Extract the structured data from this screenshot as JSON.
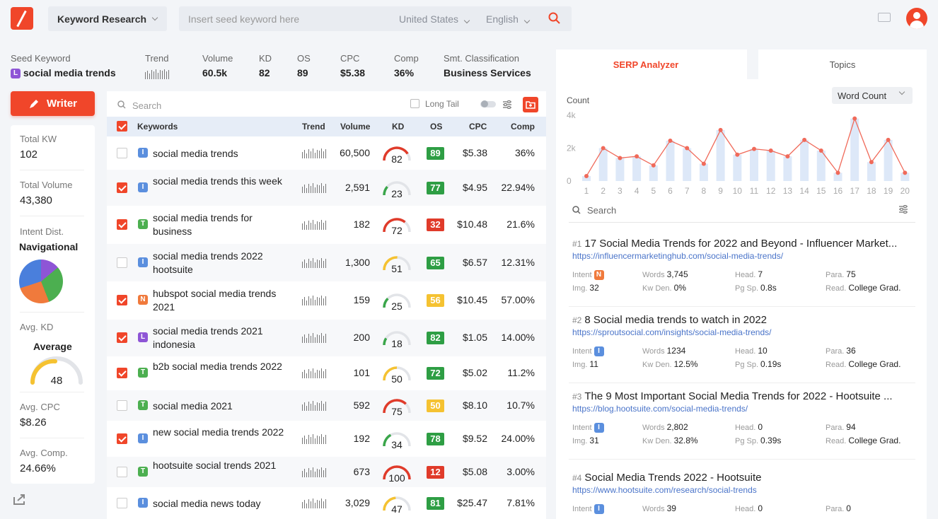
{
  "top": {
    "tool": "Keyword Research",
    "placeholder": "Insert seed keyword here",
    "country": "United States",
    "language": "English"
  },
  "seed": {
    "label": "Seed Keyword",
    "keyword": "social media trends",
    "intent": "L",
    "trend_label": "Trend",
    "volume_label": "Volume",
    "volume": "60.5k",
    "kd_label": "KD",
    "kd": "82",
    "os_label": "OS",
    "os": "89",
    "cpc_label": "CPC",
    "cpc": "$5.38",
    "comp_label": "Comp",
    "comp": "36%",
    "smt_label": "Smt. Classification",
    "smt": "Business Services"
  },
  "writer_label": "Writer",
  "left_stats": {
    "total_kw_label": "Total KW",
    "total_kw": "102",
    "total_volume_label": "Total Volume",
    "total_volume": "43,380",
    "intent_label": "Intent Dist.",
    "intent_value": "Navigational",
    "avg_kd_label": "Avg. KD",
    "avg_kd_text": "Average",
    "avg_kd": "48",
    "avg_cpc_label": "Avg. CPC",
    "avg_cpc": "$8.26",
    "avg_comp_label": "Avg. Comp.",
    "avg_comp": "24.66%"
  },
  "table": {
    "search_placeholder": "Search",
    "long_tail": "Long Tail",
    "headers": {
      "keywords": "Keywords",
      "trend": "Trend",
      "volume": "Volume",
      "kd": "KD",
      "os": "OS",
      "cpc": "CPC",
      "comp": "Comp"
    },
    "rows": [
      {
        "checked": false,
        "intent": "I",
        "keyword": "social media trends",
        "volume": "60,500",
        "kd": "82",
        "os": "89",
        "cpc": "$5.38",
        "comp": "36%"
      },
      {
        "checked": true,
        "intent": "I",
        "keyword": "social media trends this week",
        "volume": "2,591",
        "kd": "23",
        "os": "77",
        "cpc": "$4.95",
        "comp": "22.94%"
      },
      {
        "checked": true,
        "intent": "T",
        "keyword": "social media trends for business",
        "volume": "182",
        "kd": "72",
        "os": "32",
        "cpc": "$10.48",
        "comp": "21.6%"
      },
      {
        "checked": false,
        "intent": "I",
        "keyword": "social media trends 2022 hootsuite",
        "volume": "1,300",
        "kd": "51",
        "os": "65",
        "cpc": "$6.57",
        "comp": "12.31%"
      },
      {
        "checked": true,
        "intent": "N",
        "keyword": "hubspot social media trends 2021",
        "volume": "159",
        "kd": "25",
        "os": "56",
        "cpc": "$10.45",
        "comp": "57.00%"
      },
      {
        "checked": true,
        "intent": "L",
        "keyword": "social media trends 2021 indonesia",
        "volume": "200",
        "kd": "18",
        "os": "82",
        "cpc": "$1.05",
        "comp": "14.00%"
      },
      {
        "checked": true,
        "intent": "T",
        "keyword": "b2b social media trends 2022",
        "volume": "101",
        "kd": "50",
        "os": "72",
        "cpc": "$5.02",
        "comp": "11.2%"
      },
      {
        "checked": false,
        "intent": "T",
        "keyword": "social media 2021",
        "volume": "592",
        "kd": "75",
        "os": "50",
        "cpc": "$8.10",
        "comp": "10.7%"
      },
      {
        "checked": true,
        "intent": "I",
        "keyword": "new social media trends 2022",
        "volume": "192",
        "kd": "34",
        "os": "78",
        "cpc": "$9.52",
        "comp": "24.00%"
      },
      {
        "checked": false,
        "intent": "T",
        "keyword": "hootsuite social trends 2021",
        "volume": "673",
        "kd": "100",
        "os": "12",
        "cpc": "$5.08",
        "comp": "3.00%"
      },
      {
        "checked": false,
        "intent": "I",
        "keyword": "social media news today",
        "volume": "3,029",
        "kd": "47",
        "os": "81",
        "cpc": "$25.47",
        "comp": "7.81%"
      }
    ]
  },
  "serp": {
    "tab_active": "SERP Analyzer",
    "tab_other": "Topics",
    "metric_select": "Word Count",
    "count_label": "Count",
    "search_placeholder": "Search",
    "colors": {
      "line": "#f06a5a",
      "bar": "#dde8f8"
    }
  },
  "chart_data": {
    "type": "bar",
    "ylabel": "Count",
    "ylim": [
      0,
      4000
    ],
    "y_ticks": [
      "0",
      "2k",
      "4k"
    ],
    "categories": [
      "1",
      "2",
      "3",
      "4",
      "5",
      "6",
      "7",
      "8",
      "9",
      "10",
      "11",
      "12",
      "13",
      "14",
      "15",
      "16",
      "17",
      "18",
      "19",
      "20"
    ],
    "series": [
      {
        "name": "Word Count (bar)",
        "values": [
          300,
          2000,
          1400,
          1500,
          950,
          2450,
          2000,
          1050,
          3100,
          1600,
          1950,
          1850,
          1500,
          2500,
          1850,
          500,
          3800,
          1150,
          2500,
          500
        ]
      },
      {
        "name": "Word Count (line)",
        "values": [
          300,
          2000,
          1400,
          1500,
          950,
          2450,
          2000,
          1050,
          3100,
          1600,
          1950,
          1850,
          1500,
          2500,
          1850,
          500,
          3800,
          1150,
          2500,
          500
        ]
      }
    ]
  },
  "serp_results": [
    {
      "num": "#1",
      "title": "17 Social Media Trends for 2022 and Beyond - Influencer Market...",
      "url": "https://influencermarketinghub.com/social-media-trends/",
      "intent": "N",
      "words": "3,745",
      "head": "7",
      "para": "75",
      "img": "32",
      "kw_den": "0%",
      "pg_sp": "0.8s",
      "read": "College Grad."
    },
    {
      "num": "#2",
      "title": "8 Social media trends to watch in 2022",
      "url": "https://sproutsocial.com/insights/social-media-trends/",
      "intent": "I",
      "words": "1234",
      "head": "10",
      "para": "36",
      "img": "11",
      "kw_den": "12.5%",
      "pg_sp": "0.19s",
      "read": "College Grad."
    },
    {
      "num": "#3",
      "title": "The 9 Most Important Social Media Trends for 2022 - Hootsuite ...",
      "url": "https://blog.hootsuite.com/social-media-trends/",
      "intent": "I",
      "words": "2,802",
      "head": "0",
      "para": "94",
      "img": "31",
      "kw_den": "32.8%",
      "pg_sp": "0.39s",
      "read": "College Grad."
    },
    {
      "num": "#4",
      "title": "Social Media Trends 2022 - Hootsuite",
      "url": "https://www.hootsuite.com/research/social-trends",
      "intent": "I",
      "words": "39",
      "head": "0",
      "para": "0"
    }
  ],
  "serp_labels": {
    "intent": "Intent",
    "words": "Words",
    "head": "Head.",
    "para": "Para.",
    "img": "Img.",
    "kw_den": "Kw Den.",
    "pg_sp": "Pg Sp.",
    "read": "Read."
  }
}
